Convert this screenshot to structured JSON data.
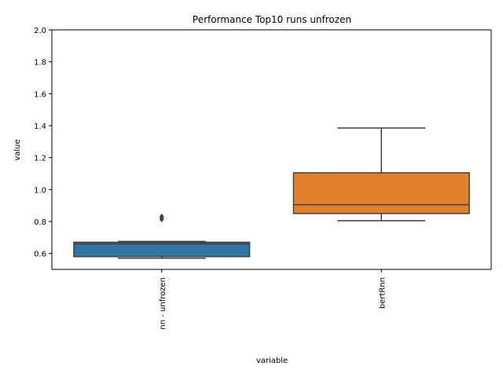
{
  "chart_data": {
    "type": "box",
    "title": "Performance Top10 runs unfrozen",
    "xlabel": "variable",
    "ylabel": "value",
    "ylim": [
      0.5,
      2.0
    ],
    "yticks": [
      "0.6",
      "0.8",
      "1.0",
      "1.2",
      "1.4",
      "1.6",
      "1.8",
      "2.0"
    ],
    "grid": false,
    "categories": [
      "nn - unfrozen",
      "bertRnn"
    ],
    "series": [
      {
        "category": "nn - unfrozen",
        "color": "#3274a1",
        "whisker_low": 0.57,
        "q1": 0.58,
        "median": 0.66,
        "q3": 0.67,
        "whisker_high": 0.675,
        "outliers": [
          0.815,
          0.83
        ]
      },
      {
        "category": "bertRnn",
        "color": "#e1812c",
        "whisker_low": 0.805,
        "q1": 0.85,
        "median": 0.905,
        "q3": 1.105,
        "whisker_high": 1.385,
        "outliers": []
      }
    ]
  }
}
